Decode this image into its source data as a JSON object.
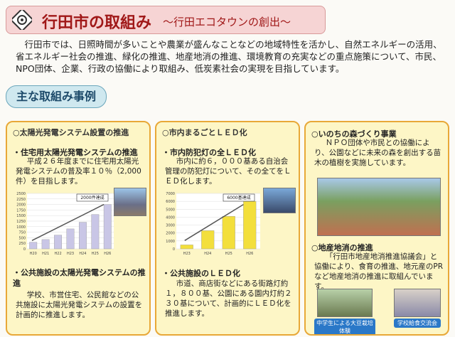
{
  "header": {
    "title": "行田市の取組み",
    "subtitle": "～行田エコタウンの創出～"
  },
  "intro": "行田市では、日照時間が多いことや農業が盛んなことなどの地域特性を活かし、自然エネルギーの活用、省エネルギー社会の推進、緑化の推進、地産地消の推進、環境教育の充実などの重点施策について、市民、NPO団体、企業、行政の協働により取組み、低炭素社会の実現を目指しています。",
  "section_title": "主な取組み事例",
  "panels": [
    {
      "heading": "○太陽光発電システム設置の推進",
      "items": [
        {
          "title": "・住宅用太陽光発電システムの推進",
          "text": "平成２６年度までに住宅用太陽光発電システムの普及率１０％（2,000件）を目指します。"
        },
        {
          "title": "・公共施設の太陽光発電システムの推進",
          "text": "学校、市営住宅、公民館などの公共施設に太陽光発電システムの設置を計画的に推進します。"
        }
      ],
      "chart": {
        "type": "bar",
        "categories": [
          "H20",
          "H21",
          "H22",
          "H23",
          "H24",
          "H25",
          "H26"
        ],
        "values": [
          300,
          420,
          620,
          900,
          1200,
          1550,
          2000
        ],
        "color": "#c9c6e6",
        "ylim": [
          0,
          2500
        ],
        "yticks": [
          0,
          250,
          500,
          750,
          1000,
          1250,
          1500,
          1750,
          2000,
          2250,
          2500
        ],
        "annotation": "2000件達成"
      }
    },
    {
      "heading": "○市内まるごとＬＥＤ化",
      "items": [
        {
          "title": "・市内防犯灯の全ＬＥＤ化",
          "text": "市内に約６，０００基ある自治会管理の防犯灯について、その全てをＬＥＤ化します。"
        },
        {
          "title": "・公共施設のＬＥＤ化",
          "text": "市道、商店街などにある街路灯約１，８００基、公園にある園内灯約２３０基について、計画的にＬＥＤ化を推進します。"
        }
      ],
      "chart": {
        "type": "bar",
        "categories": [
          "H23",
          "H24",
          "H25",
          "H26"
        ],
        "values": [
          500,
          2300,
          4100,
          6000
        ],
        "color": "#f3df3c",
        "ylim": [
          0,
          7000
        ],
        "yticks": [
          0,
          1000,
          2000,
          3000,
          4000,
          5000,
          6000,
          7000
        ],
        "annotation": "6000基達成"
      }
    },
    {
      "items": [
        {
          "title": "○いのちの森づくり事業",
          "text": "ＮＰＯ団体や市民との協働により、公園などに未来の森を創出する苗木の植樹を実施しています。"
        },
        {
          "title": "○地産地消の推進",
          "text": "「行田市地産地消推進協議会」と協働により、食育の推進、地元産のPRなど地産地消の推進に取組んでいます。"
        }
      ],
      "captions": [
        "中学生による大豆栽培体験",
        "学校給食交流会"
      ]
    }
  ]
}
